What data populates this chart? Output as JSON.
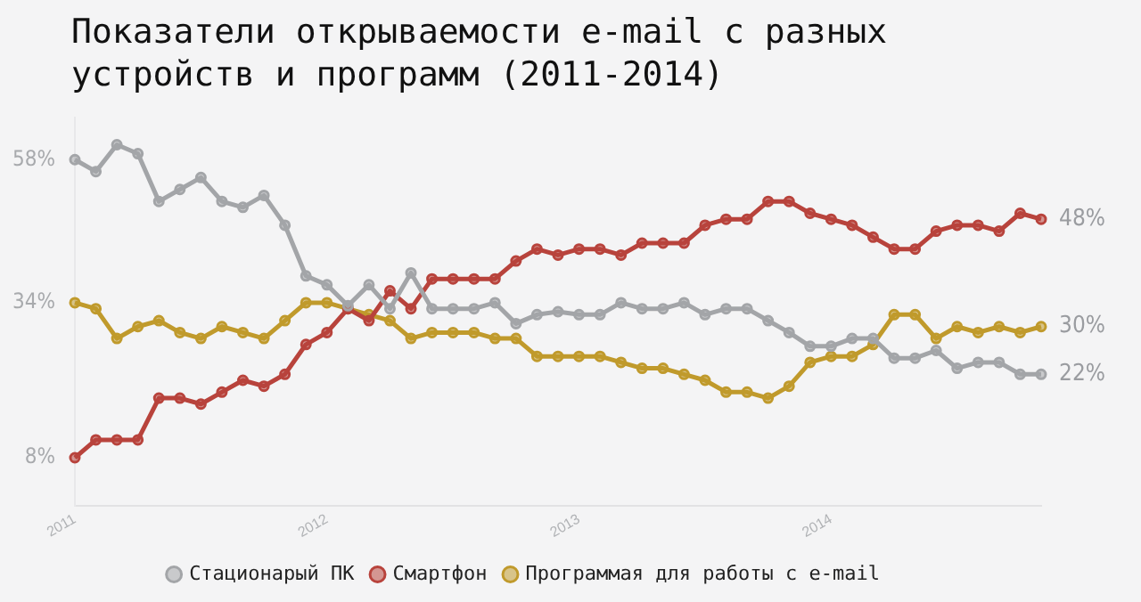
{
  "chart_data": {
    "type": "line",
    "title": "Показатели открываемости e-mail с разных устройств и программ (2011-2014)",
    "categories": [
      "2011",
      null,
      null,
      null,
      null,
      null,
      null,
      null,
      null,
      null,
      null,
      null,
      "2012",
      null,
      null,
      null,
      null,
      null,
      null,
      null,
      null,
      null,
      null,
      null,
      "2013",
      null,
      null,
      null,
      null,
      null,
      null,
      null,
      null,
      null,
      null,
      null,
      "2014",
      null,
      null,
      null,
      null,
      null,
      null,
      null,
      null,
      null,
      null
    ],
    "series": [
      {
        "name": "Стационарый ПК",
        "color": "#a3a5a8",
        "values": [
          58,
          56,
          60.5,
          59,
          51,
          53,
          55,
          51,
          50,
          52,
          47,
          38.5,
          37,
          33.5,
          37,
          33,
          39,
          33,
          33,
          33,
          34,
          30.5,
          32,
          32.5,
          32,
          32,
          34,
          33,
          33,
          34,
          32,
          33,
          33,
          31,
          29,
          26.7,
          26.7,
          28,
          28,
          24.7,
          24.7,
          26,
          23,
          24,
          24,
          22,
          22
        ],
        "value_labels": [
          null,
          null,
          null,
          null,
          null,
          null,
          null,
          null,
          null,
          null,
          null,
          null,
          null,
          null,
          null,
          null,
          null,
          null,
          null,
          null,
          null,
          null,
          null,
          null,
          null,
          null,
          null,
          null,
          null,
          null,
          null,
          null,
          null,
          null,
          null,
          null,
          null,
          null,
          null,
          null,
          null,
          null,
          null,
          null,
          null,
          null,
          "22%"
        ]
      },
      {
        "name": "Смартфон",
        "color": "#b8433c",
        "values": [
          8,
          11,
          11,
          11,
          18,
          18,
          17,
          19,
          21,
          20,
          22,
          27,
          29,
          33,
          31,
          36,
          33,
          38,
          38,
          38,
          38,
          41,
          43,
          42,
          43,
          43,
          42,
          44,
          44,
          44,
          47,
          48,
          48,
          51,
          51,
          49,
          48,
          47,
          45,
          43,
          43,
          46,
          47,
          47,
          46,
          49,
          48
        ],
        "value_labels": [
          null,
          null,
          null,
          null,
          null,
          null,
          null,
          null,
          null,
          null,
          null,
          null,
          null,
          null,
          null,
          null,
          null,
          null,
          null,
          null,
          null,
          null,
          null,
          null,
          null,
          null,
          null,
          null,
          null,
          null,
          null,
          null,
          null,
          null,
          null,
          null,
          null,
          null,
          null,
          null,
          null,
          null,
          null,
          null,
          null,
          null,
          "48%"
        ]
      },
      {
        "name": "Программая для работы с e-mail",
        "color": "#c09a2c",
        "values": [
          34,
          33,
          28,
          30,
          31,
          29,
          28,
          30,
          29,
          28,
          31,
          34,
          34,
          33,
          32,
          31,
          28,
          29,
          29,
          29,
          28,
          28,
          25,
          25,
          25,
          25,
          24,
          23,
          23,
          22,
          21,
          19,
          19,
          18,
          20,
          24,
          25,
          25,
          27,
          32,
          32,
          28,
          30,
          29,
          30,
          29,
          30
        ],
        "value_labels": [
          null,
          null,
          null,
          null,
          null,
          null,
          null,
          null,
          null,
          null,
          null,
          null,
          null,
          null,
          null,
          null,
          null,
          null,
          null,
          null,
          null,
          null,
          null,
          null,
          null,
          null,
          null,
          null,
          null,
          null,
          null,
          null,
          null,
          null,
          null,
          null,
          null,
          null,
          null,
          null,
          null,
          null,
          null,
          null,
          null,
          null,
          "30%"
        ]
      }
    ],
    "ylim": [
      0,
      65
    ],
    "yticks": [
      {
        "value": 8,
        "label": "8%"
      },
      {
        "value": 34,
        "label": "34%"
      },
      {
        "value": 58,
        "label": "58%"
      }
    ],
    "grid": false,
    "legend": "bottom",
    "marker": "circle",
    "line_style": "solid"
  }
}
